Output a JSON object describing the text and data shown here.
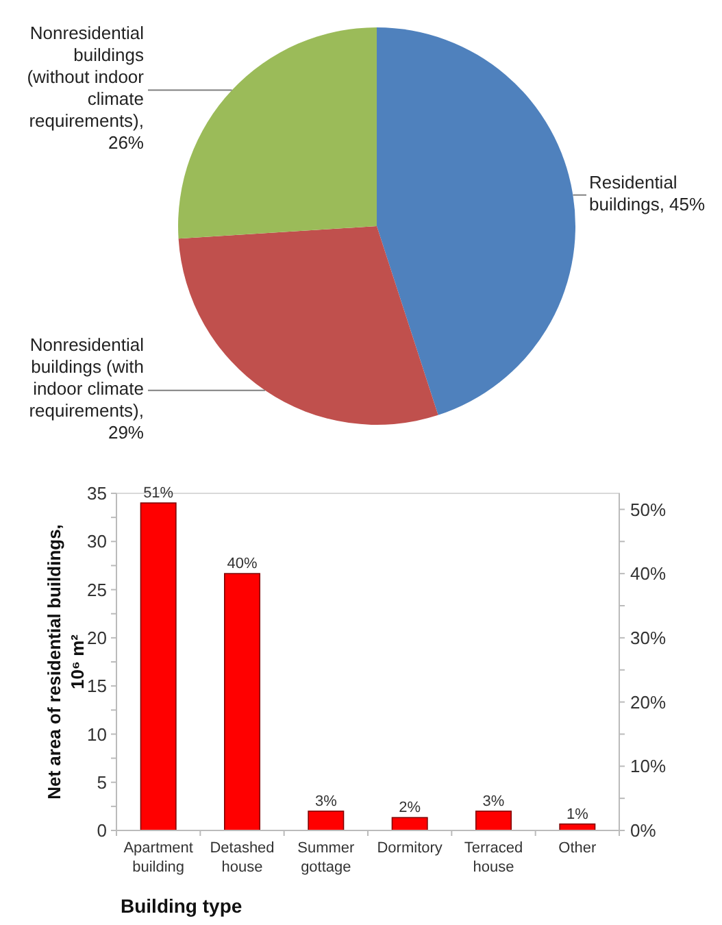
{
  "chart_data": [
    {
      "type": "pie",
      "categories": [
        "Residential buildings, 45%",
        "Nonresidential buildings (with indoor climate requirements), 29%",
        "Nonresidential buildings (without indoor climate requirements), 26%"
      ],
      "values": [
        45,
        29,
        26
      ],
      "colors": [
        "#4f81bd",
        "#c0504d",
        "#9bbb59"
      ]
    },
    {
      "type": "bar",
      "categories": [
        "Apartment building",
        "Detashed house",
        "Summer gottage",
        "Dormitory",
        "Terraced house",
        "Other"
      ],
      "series": [
        {
          "color": "#ff0000",
          "axis": "y2",
          "values": [
            51,
            40,
            3,
            2,
            3,
            1
          ],
          "value_labels": [
            "51%",
            "40%",
            "3%",
            "2%",
            "3%",
            "1%"
          ]
        }
      ],
      "ylabel": "Net area of residential buildings, 10⁶ m²",
      "xlabel": "Building type",
      "ylim": [
        0,
        35
      ],
      "yticks": [
        0,
        {
          "value": 2.5,
          "label": null
        },
        5,
        {
          "value": 7.5,
          "label": null
        },
        10,
        {
          "value": 12.5,
          "label": null
        },
        15,
        {
          "value": 17.5,
          "label": null
        },
        20,
        {
          "value": 22.5,
          "label": null
        },
        25,
        {
          "value": 27.5,
          "label": null
        },
        30,
        {
          "value": 32.5,
          "label": null
        },
        35
      ],
      "y2lim": [
        0,
        52.5
      ],
      "y2ticks": [
        {
          "value": 0,
          "label": "0%"
        },
        {
          "value": 5,
          "label": null
        },
        {
          "value": 10,
          "label": "10%"
        },
        {
          "value": 15,
          "label": null
        },
        {
          "value": 20,
          "label": "20%"
        },
        {
          "value": 25,
          "label": null
        },
        {
          "value": 30,
          "label": "30%"
        },
        {
          "value": 35,
          "label": null
        },
        {
          "value": 40,
          "label": "40%"
        },
        {
          "value": 45,
          "label": null
        },
        {
          "value": 50,
          "label": "50%"
        }
      ],
      "grid": false
    }
  ]
}
